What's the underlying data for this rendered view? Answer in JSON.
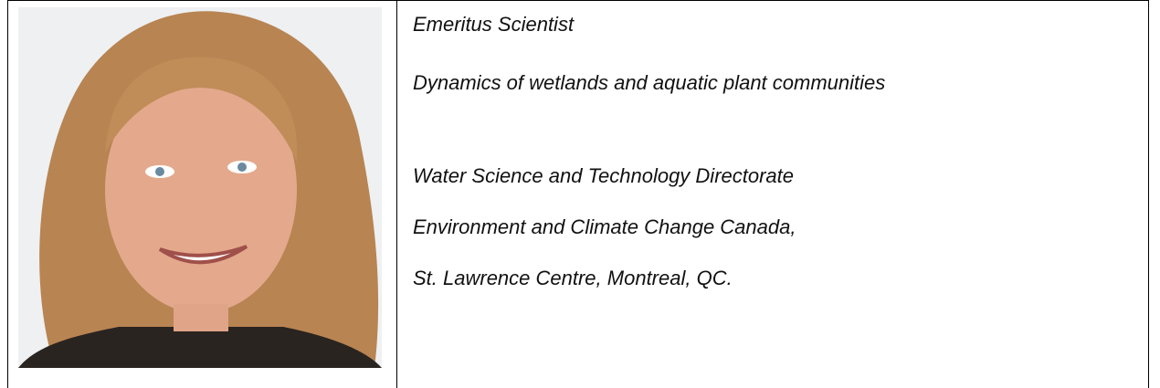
{
  "profile": {
    "lines": [
      "Emeritus Scientist",
      "Dynamics of wetlands and aquatic plant communities",
      "Water Science and Technology Directorate",
      "Environment and Climate Change Canada,",
      "St. Lawrence Centre, Montreal, QC."
    ]
  }
}
